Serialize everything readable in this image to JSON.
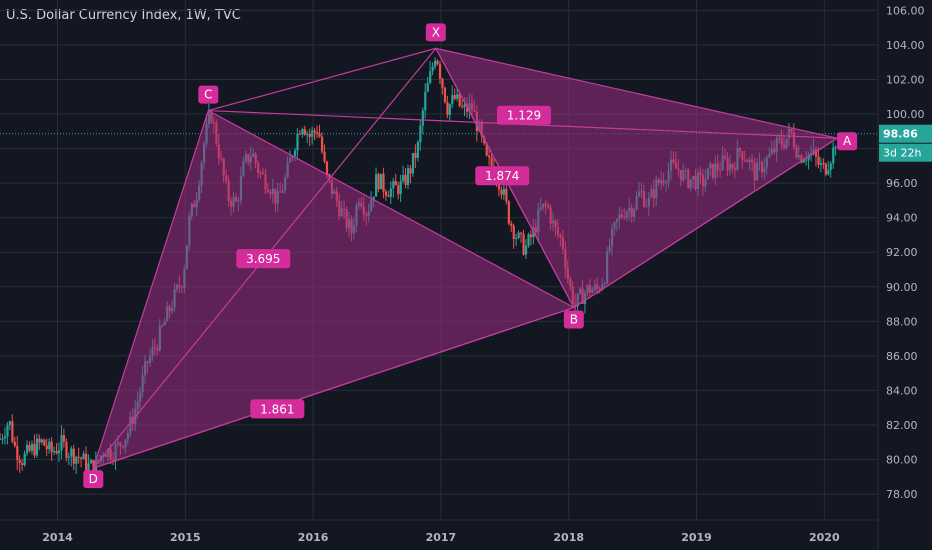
{
  "title": "U.S. Dollar Currency Index, 1W, TVC",
  "colors": {
    "background": "#131722",
    "grid": "#2a2e39",
    "up": "#26a69a",
    "down": "#ef5350",
    "pattern_line": "#c23d9c",
    "pattern_fill": "#9c2c82",
    "label_bg": "#d52c9c",
    "price_line": "#26a69a"
  },
  "price_badge": "98.86",
  "countdown_badge": "3d 22h",
  "chart_data": {
    "type": "candlestick",
    "title": "U.S. Dollar Currency Index, 1W, TVC",
    "ylim": [
      76.5,
      106.6
    ],
    "yticks": [
      "78.00",
      "80.00",
      "82.00",
      "84.00",
      "86.00",
      "88.00",
      "90.00",
      "92.00",
      "94.00",
      "96.00",
      "98.00",
      "100.00",
      "102.00",
      "104.00",
      "106.00"
    ],
    "xlim": [
      2013.55,
      2020.42
    ],
    "xticks": [
      "2014",
      "2015",
      "2016",
      "2017",
      "2018",
      "2019",
      "2020"
    ],
    "grid": true,
    "last_price": 98.86,
    "price_path": [
      [
        2013.55,
        81.2
      ],
      [
        2013.62,
        82.3
      ],
      [
        2013.66,
        80.8
      ],
      [
        2013.72,
        80.0
      ],
      [
        2013.8,
        80.6
      ],
      [
        2013.88,
        81.0
      ],
      [
        2013.95,
        80.4
      ],
      [
        2014.03,
        80.9
      ],
      [
        2014.1,
        80.4
      ],
      [
        2014.18,
        80.1
      ],
      [
        2014.24,
        79.6
      ],
      [
        2014.3,
        79.6
      ],
      [
        2014.36,
        80.6
      ],
      [
        2014.42,
        80.4
      ],
      [
        2014.48,
        80.8
      ],
      [
        2014.55,
        81.6
      ],
      [
        2014.62,
        83.2
      ],
      [
        2014.7,
        85.6
      ],
      [
        2014.78,
        86.8
      ],
      [
        2014.86,
        88.4
      ],
      [
        2014.92,
        89.5
      ],
      [
        2014.98,
        90.5
      ],
      [
        2015.03,
        93.8
      ],
      [
        2015.09,
        95.5
      ],
      [
        2015.15,
        98.5
      ],
      [
        2015.2,
        100.1
      ],
      [
        2015.27,
        97.5
      ],
      [
        2015.33,
        95.2
      ],
      [
        2015.4,
        94.8
      ],
      [
        2015.46,
        97.1
      ],
      [
        2015.52,
        97.8
      ],
      [
        2015.58,
        96.6
      ],
      [
        2015.66,
        95.9
      ],
      [
        2015.72,
        94.9
      ],
      [
        2015.79,
        96.4
      ],
      [
        2015.85,
        98.2
      ],
      [
        2015.91,
        99.6
      ],
      [
        2015.97,
        98.7
      ],
      [
        2016.04,
        99.2
      ],
      [
        2016.1,
        96.4
      ],
      [
        2016.17,
        95.2
      ],
      [
        2016.24,
        94.0
      ],
      [
        2016.3,
        93.2
      ],
      [
        2016.36,
        95.4
      ],
      [
        2016.42,
        94.3
      ],
      [
        2016.5,
        96.3
      ],
      [
        2016.56,
        95.7
      ],
      [
        2016.62,
        95.6
      ],
      [
        2016.7,
        95.9
      ],
      [
        2016.76,
        96.8
      ],
      [
        2016.82,
        98.1
      ],
      [
        2016.87,
        100.8
      ],
      [
        2016.93,
        102.6
      ],
      [
        2016.96,
        103.7
      ],
      [
        2017.0,
        102.1
      ],
      [
        2017.05,
        100.4
      ],
      [
        2017.11,
        100.9
      ],
      [
        2017.17,
        100.2
      ],
      [
        2017.24,
        100.4
      ],
      [
        2017.3,
        99.0
      ],
      [
        2017.36,
        97.2
      ],
      [
        2017.42,
        96.9
      ],
      [
        2017.48,
        95.6
      ],
      [
        2017.54,
        93.8
      ],
      [
        2017.6,
        92.8
      ],
      [
        2017.66,
        92.2
      ],
      [
        2017.72,
        93.1
      ],
      [
        2017.78,
        94.4
      ],
      [
        2017.83,
        94.7
      ],
      [
        2017.89,
        93.3
      ],
      [
        2017.95,
        92.6
      ],
      [
        2018.0,
        90.2
      ],
      [
        2018.05,
        88.9
      ],
      [
        2018.1,
        89.5
      ],
      [
        2018.16,
        89.9
      ],
      [
        2018.22,
        89.8
      ],
      [
        2018.28,
        90.7
      ],
      [
        2018.32,
        92.4
      ],
      [
        2018.38,
        93.8
      ],
      [
        2018.44,
        94.5
      ],
      [
        2018.5,
        94.6
      ],
      [
        2018.56,
        95.5
      ],
      [
        2018.62,
        94.8
      ],
      [
        2018.68,
        95.8
      ],
      [
        2018.74,
        96.4
      ],
      [
        2018.8,
        96.9
      ],
      [
        2018.86,
        96.8
      ],
      [
        2018.92,
        96.2
      ],
      [
        2018.98,
        96.2
      ],
      [
        2019.04,
        96.0
      ],
      [
        2019.1,
        96.6
      ],
      [
        2019.16,
        96.9
      ],
      [
        2019.22,
        97.2
      ],
      [
        2019.28,
        97.0
      ],
      [
        2019.34,
        97.9
      ],
      [
        2019.4,
        97.4
      ],
      [
        2019.46,
        96.5
      ],
      [
        2019.52,
        97.1
      ],
      [
        2019.58,
        97.6
      ],
      [
        2019.64,
        98.3
      ],
      [
        2019.68,
        98.4
      ],
      [
        2019.74,
        98.9
      ],
      [
        2019.8,
        97.6
      ],
      [
        2019.86,
        97.7
      ],
      [
        2019.92,
        97.6
      ],
      [
        2019.96,
        97.0
      ],
      [
        2020.0,
        96.8
      ],
      [
        2020.04,
        97.4
      ],
      [
        2020.07,
        97.9
      ],
      [
        2020.1,
        98.86
      ]
    ],
    "pattern": {
      "points": [
        {
          "label": "X",
          "x": 2016.96,
          "y": 103.8
        },
        {
          "label": "A",
          "x": 2020.1,
          "y": 98.6
        },
        {
          "label": "B",
          "x": 2018.04,
          "y": 88.8
        },
        {
          "label": "C",
          "x": 2015.18,
          "y": 100.2
        },
        {
          "label": "D",
          "x": 2014.28,
          "y": 79.5
        }
      ],
      "ratios": [
        {
          "text": "1.129",
          "x": 2017.65,
          "y": 99.9
        },
        {
          "text": "1.874",
          "x": 2017.48,
          "y": 96.4
        },
        {
          "text": "3.695",
          "x": 2015.61,
          "y": 91.6
        },
        {
          "text": "1.861",
          "x": 2015.72,
          "y": 82.9
        }
      ]
    }
  }
}
